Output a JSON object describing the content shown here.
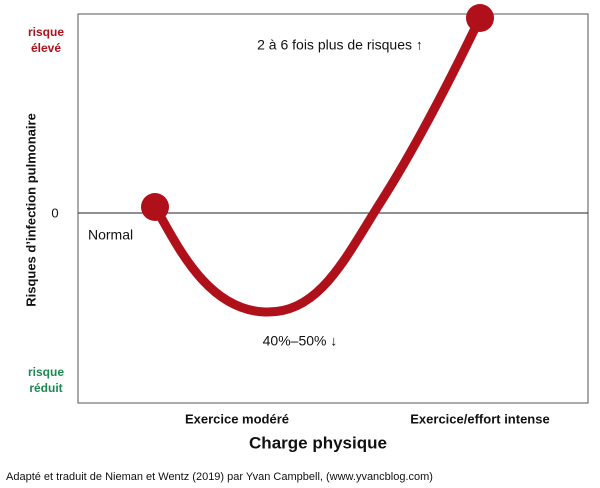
{
  "y_axis": {
    "label": "Risques d’infection pulmonaire",
    "high": [
      "risque",
      "élevé"
    ],
    "zero": "0",
    "low": [
      "risque",
      "réduit"
    ]
  },
  "annotations": {
    "start": "Normal",
    "high": "2 à 6 fois plus de risques ↑",
    "low": "40%–50% ↓"
  },
  "x_axis": {
    "title": "Charge physique",
    "labels": [
      "Exercice modéré",
      "Exercice/effort intense"
    ]
  },
  "caption": "Adapté et traduit de Nieman et Wentz (2019) par Yvan Campbell, (www.yvancblog.com)"
}
